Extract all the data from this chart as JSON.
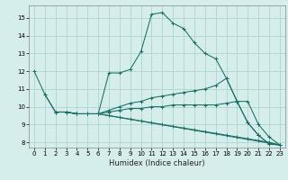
{
  "title": "",
  "xlabel": "Humidex (Indice chaleur)",
  "background_color": "#d6eeeb",
  "grid_color": "#aed4d0",
  "line_color": "#1a6e65",
  "xlim": [
    -0.5,
    23.5
  ],
  "ylim": [
    7.7,
    15.7
  ],
  "xticks": [
    0,
    1,
    2,
    3,
    4,
    5,
    6,
    7,
    8,
    9,
    10,
    11,
    12,
    13,
    14,
    15,
    16,
    17,
    18,
    19,
    20,
    21,
    22,
    23
  ],
  "yticks": [
    8,
    9,
    10,
    11,
    12,
    13,
    14,
    15
  ],
  "lines": [
    {
      "x": [
        0,
        1,
        2,
        3,
        4,
        5,
        6,
        7,
        8,
        9,
        10,
        11,
        12,
        13,
        14,
        15,
        16,
        17,
        18,
        19,
        20,
        21,
        22,
        23
      ],
      "y": [
        12.0,
        10.7,
        9.7,
        9.7,
        9.6,
        9.6,
        9.6,
        11.9,
        11.9,
        12.1,
        13.1,
        15.2,
        15.3,
        14.7,
        14.4,
        13.6,
        13.0,
        12.7,
        11.6,
        10.3,
        9.1,
        8.4,
        7.9,
        7.85
      ]
    },
    {
      "x": [
        1,
        2,
        3,
        4,
        5,
        6,
        7,
        8,
        9,
        10,
        11,
        12,
        13,
        14,
        15,
        16,
        17,
        18,
        19,
        20,
        21,
        22,
        23
      ],
      "y": [
        10.7,
        9.7,
        9.7,
        9.6,
        9.6,
        9.6,
        9.8,
        10.0,
        10.2,
        10.3,
        10.5,
        10.6,
        10.7,
        10.8,
        10.9,
        11.0,
        11.2,
        11.6,
        10.3,
        9.1,
        8.4,
        7.9,
        7.85
      ]
    },
    {
      "x": [
        2,
        3,
        4,
        5,
        6,
        7,
        8,
        9,
        10,
        11,
        12,
        13,
        14,
        15,
        16,
        17,
        18,
        19,
        20,
        21,
        22,
        23
      ],
      "y": [
        9.7,
        9.7,
        9.6,
        9.6,
        9.6,
        9.7,
        9.8,
        9.9,
        9.9,
        10.0,
        10.0,
        10.1,
        10.1,
        10.1,
        10.1,
        10.1,
        10.2,
        10.3,
        10.3,
        9.0,
        8.3,
        7.85
      ]
    },
    {
      "x": [
        2,
        3,
        4,
        5,
        6,
        7,
        8,
        9,
        10,
        11,
        12,
        13,
        14,
        15,
        16,
        17,
        18,
        19,
        20,
        21,
        22,
        23
      ],
      "y": [
        9.7,
        9.7,
        9.6,
        9.6,
        9.6,
        9.5,
        9.4,
        9.3,
        9.2,
        9.1,
        9.0,
        8.9,
        8.8,
        8.7,
        8.6,
        8.5,
        8.4,
        8.3,
        8.2,
        8.1,
        8.0,
        7.85
      ]
    },
    {
      "x": [
        2,
        3,
        4,
        5,
        6,
        23
      ],
      "y": [
        9.7,
        9.7,
        9.6,
        9.6,
        9.6,
        7.85
      ]
    }
  ]
}
